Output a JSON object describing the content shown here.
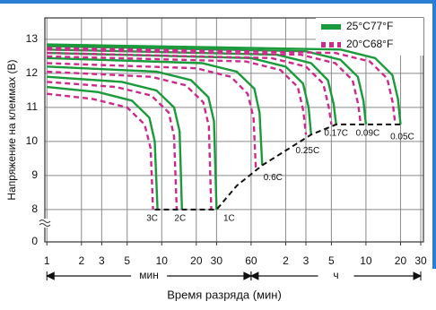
{
  "chart_data": {
    "type": "line",
    "x_label": "Время разряда (мин)",
    "y_label": "Напряжение на клеммах (В)",
    "x_log": true,
    "xlim": [
      0.96,
      1900
    ],
    "xticks": [
      1,
      2,
      3,
      5,
      10,
      20,
      30,
      60,
      {
        "value": 120,
        "label": "2"
      },
      {
        "value": 180,
        "label": "3"
      },
      {
        "value": 300,
        "label": "5"
      },
      {
        "value": 600,
        "label": "10"
      },
      {
        "value": 1200,
        "label": "20"
      },
      {
        "value": 1800,
        "label": "30"
      }
    ],
    "ylim": [
      7.05,
      13.63
    ],
    "yticks": [
      8,
      9,
      10,
      11,
      12,
      13
    ],
    "y_break_tick": 0,
    "grid": true,
    "legend": "top-right",
    "x_spans": [
      {
        "label": "мин",
        "from": 1,
        "to": 60
      },
      {
        "label": "ч",
        "from": 60,
        "to": 1800
      }
    ],
    "rates": [
      "3C",
      "2C",
      "1C",
      "0.6C",
      "0.25C",
      "0.17C",
      "0.09C",
      "0.05C"
    ],
    "series": [
      {
        "name": "25°C77°F",
        "color": "#1a9a3a",
        "dashed": false,
        "curves": [
          {
            "x": [
              1,
              2.8,
              5.5,
              7.8,
              8.7,
              9.2
            ],
            "values": [
              11.6,
              11.45,
              11.2,
              10.7,
              10,
              8
            ]
          },
          {
            "x": [
              1,
              4.5,
              9,
              12.8,
              14.3,
              15
            ],
            "values": [
              11.9,
              11.75,
              11.5,
              11,
              10.3,
              8
            ]
          },
          {
            "x": [
              1,
              9,
              18,
              25.5,
              28.5,
              30
            ],
            "values": [
              12.2,
              12.05,
              11.8,
              11.3,
              10.6,
              8
            ]
          },
          {
            "x": [
              1,
              22.5,
              45,
              64,
              71,
              75
            ],
            "values": [
              12.45,
              12.3,
              12.05,
              11.55,
              10.85,
              9.3
            ]
          },
          {
            "x": [
              1,
              60,
              120,
              170,
              190,
              200
            ],
            "values": [
              12.6,
              12.45,
              12.2,
              11.7,
              11,
              10.2
            ]
          },
          {
            "x": [
              1,
              100,
              200,
              280,
              314,
              330
            ],
            "values": [
              12.7,
              12.55,
              12.3,
              11.8,
              11.1,
              10.5
            ]
          },
          {
            "x": [
              1,
              180,
              360,
              510,
              570,
              600
            ],
            "values": [
              12.8,
              12.65,
              12.4,
              11.9,
              11.2,
              10.5
            ]
          },
          {
            "x": [
              1,
              360,
              720,
              1020,
              1140,
              1200
            ],
            "values": [
              12.85,
              12.7,
              12.45,
              11.95,
              11.25,
              10.5
            ]
          }
        ]
      },
      {
        "name": "20°C68°F",
        "color": "#cc2a8a",
        "dashed": true,
        "curves": [
          {
            "x": [
              1,
              2.5,
              5,
              7.1,
              8,
              8.4
            ],
            "values": [
              11.4,
              11.25,
              11,
              10.5,
              9.8,
              8
            ]
          },
          {
            "x": [
              1,
              4,
              8.1,
              11.5,
              12.8,
              13.5
            ],
            "values": [
              11.75,
              11.6,
              11.35,
              10.85,
              10.15,
              8
            ]
          },
          {
            "x": [
              1,
              8.1,
              16.2,
              23,
              25.7,
              27
            ],
            "values": [
              12.05,
              11.9,
              11.65,
              11.15,
              10.45,
              8
            ]
          },
          {
            "x": [
              1,
              20,
              40,
              56,
              63,
              66
            ],
            "values": [
              12.3,
              12.15,
              11.9,
              11.4,
              10.7,
              9.2
            ]
          },
          {
            "x": [
              1,
              54,
              108,
              153,
              171,
              180
            ],
            "values": [
              12.5,
              12.35,
              12.1,
              11.6,
              10.9,
              10.2
            ]
          },
          {
            "x": [
              1,
              90,
              180,
              255,
              285,
              300
            ],
            "values": [
              12.6,
              12.45,
              12.2,
              11.7,
              11,
              10.5
            ]
          },
          {
            "x": [
              1,
              162,
              324,
              459,
              513,
              540
            ],
            "values": [
              12.7,
              12.55,
              12.3,
              11.8,
              11.1,
              10.5
            ]
          },
          {
            "x": [
              1,
              324,
              648,
              918,
              1026,
              1080
            ],
            "values": [
              12.75,
              12.6,
              12.35,
              11.85,
              11.15,
              10.5
            ]
          }
        ]
      }
    ],
    "cutoff": {
      "x": [
        8.7,
        30,
        45,
        75,
        200,
        330,
        1200
      ],
      "values": [
        8,
        8,
        8.7,
        9.3,
        10.2,
        10.5,
        10.5
      ]
    }
  }
}
